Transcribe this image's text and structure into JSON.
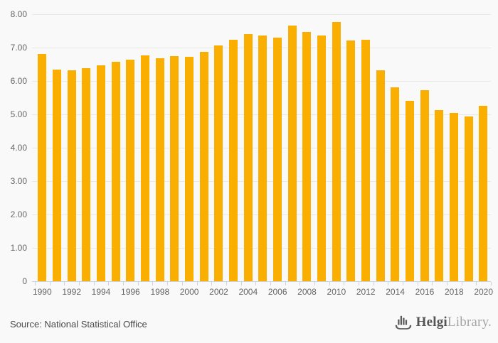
{
  "chart_data": {
    "type": "bar",
    "title": "",
    "xlabel": "",
    "ylabel": "",
    "categories": [
      "1990",
      "1991",
      "1992",
      "1993",
      "1994",
      "1995",
      "1996",
      "1997",
      "1998",
      "1999",
      "2000",
      "2001",
      "2002",
      "2003",
      "2004",
      "2005",
      "2006",
      "2007",
      "2008",
      "2009",
      "2010",
      "2011",
      "2012",
      "2013",
      "2014",
      "2015",
      "2016",
      "2017",
      "2018",
      "2019",
      "2020"
    ],
    "values": [
      6.8,
      6.35,
      6.32,
      6.38,
      6.47,
      6.57,
      6.64,
      6.76,
      6.69,
      6.75,
      6.72,
      6.87,
      7.06,
      7.24,
      7.4,
      7.36,
      7.29,
      7.67,
      7.47,
      7.36,
      7.76,
      7.21,
      7.23,
      6.31,
      5.82,
      5.41,
      5.72,
      5.13,
      5.04,
      4.94,
      5.25
    ],
    "ylim": [
      0,
      8
    ],
    "ytick_labels": [
      "8.00",
      "7.00",
      "6.00",
      "5.00",
      "4.00",
      "3.00",
      "2.00",
      "1.00",
      "0"
    ],
    "xtick_labels": [
      "1990",
      "1992",
      "1994",
      "1996",
      "1998",
      "2000",
      "2002",
      "2004",
      "2006",
      "2008",
      "2010",
      "2012",
      "2014",
      "2016",
      "2018",
      "2020"
    ],
    "xtick_label_step": 2,
    "grid": true,
    "legend_position": "none",
    "bar_color": "#f9ae00",
    "gridline_color": "#e8e8e8",
    "axis_color": "#c9d3e3",
    "tick_label_color": "#666666",
    "background_color": "#f9f9f9"
  },
  "footer": {
    "source": "Source: National Statistical Office",
    "logo_primary": "Helgi",
    "logo_secondary": "Library."
  }
}
